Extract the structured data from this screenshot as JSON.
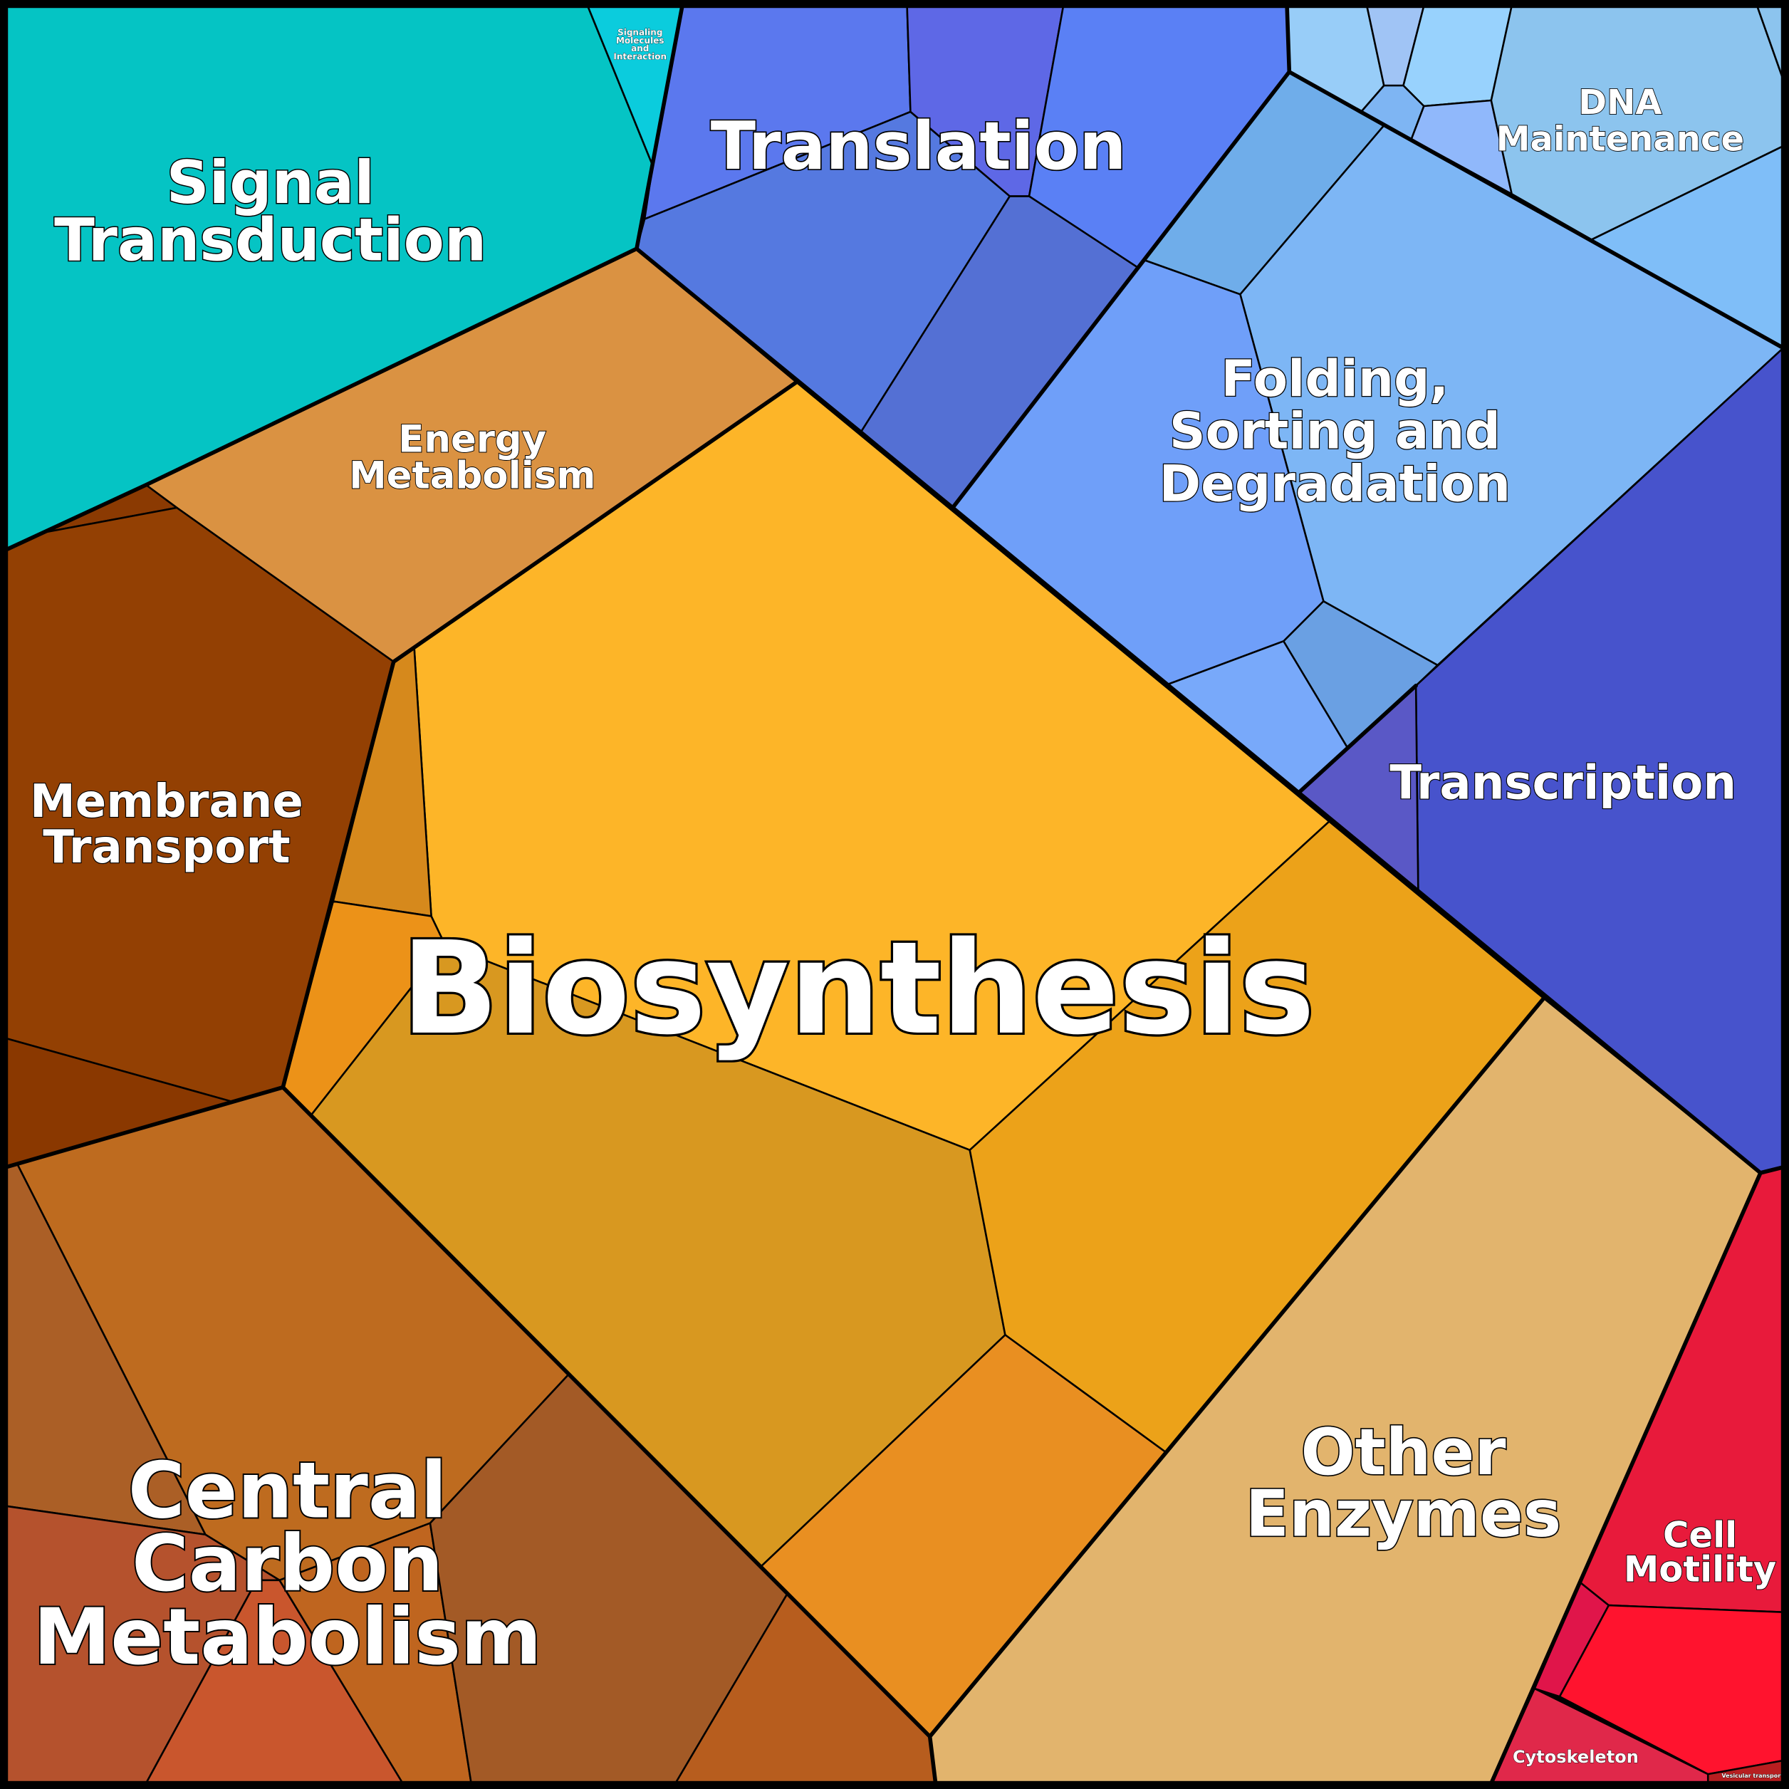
{
  "title": "",
  "groups": [
    {
      "id": "signal",
      "lines": [
        "Signal",
        "Transduction"
      ]
    },
    {
      "id": "signaling",
      "lines": [
        "Signaling",
        "Molecules",
        "and",
        "Interaction"
      ]
    },
    {
      "id": "translation",
      "lines": [
        "Translation"
      ]
    },
    {
      "id": "dna",
      "lines": [
        "DNA",
        "Maintenance"
      ]
    },
    {
      "id": "folding",
      "lines": [
        "Folding,",
        "Sorting and",
        "Degradation"
      ]
    },
    {
      "id": "transcription",
      "lines": [
        "Transcription"
      ]
    },
    {
      "id": "energy",
      "lines": [
        "Energy",
        "Metabolism"
      ]
    },
    {
      "id": "membrane",
      "lines": [
        "Membrane",
        "Transport"
      ]
    },
    {
      "id": "biosynthesis",
      "lines": [
        "Biosynthesis"
      ]
    },
    {
      "id": "central",
      "lines": [
        "Central",
        "Carbon",
        "Metabolism"
      ]
    },
    {
      "id": "other",
      "lines": [
        "Other",
        "Enzymes"
      ]
    },
    {
      "id": "motility",
      "lines": [
        "Cell",
        "Motility"
      ]
    },
    {
      "id": "cytoskeleton",
      "lines": [
        "Cytoskeleton"
      ]
    },
    {
      "id": "vesicular",
      "lines": [
        "Vesicular transport"
      ]
    }
  ],
  "colors": {
    "signal": [
      "#05C4C4"
    ],
    "signaling": [
      "#0BCCDD"
    ],
    "translation": [
      "#5B78EE",
      "#5E68E6",
      "#5A80F5",
      "#5579E0",
      "#5470D4"
    ],
    "dna": [
      "#98CDF8",
      "#A0C4F5",
      "#98D2FD",
      "#7EB5F3",
      "#90B8FB",
      "#8CC4EE",
      "#8CC4EE",
      "#7FBEF8"
    ],
    "folding": [
      "#6FADEA",
      "#7DB6F5",
      "#6F9FF9",
      "#6AA0E3",
      "#78A9FA"
    ],
    "transcription": [
      "#4753CC",
      "#5A58C6"
    ],
    "motility": [
      "#E81A3B",
      "#E0154A",
      "#FF132E"
    ],
    "cytoskeleton": [
      "#E0284A"
    ],
    "vesicular": [
      "#B81E20"
    ],
    "other": [
      "#E2B46D"
    ],
    "energy": [
      "#DA9242"
    ],
    "membrane": [
      "#8B3A02",
      "#934003",
      "#8A3800"
    ],
    "biosynthesis": [
      "#FDB528",
      "#D6891C",
      "#EC9218",
      "#D89820",
      "#ECA219",
      "#E98F21"
    ],
    "central": [
      "#BE6B1F",
      "#AB5F26",
      "#B5522D",
      "#C9562D",
      "#BF651F",
      "#A35A26",
      "#B75D1E"
    ]
  }
}
